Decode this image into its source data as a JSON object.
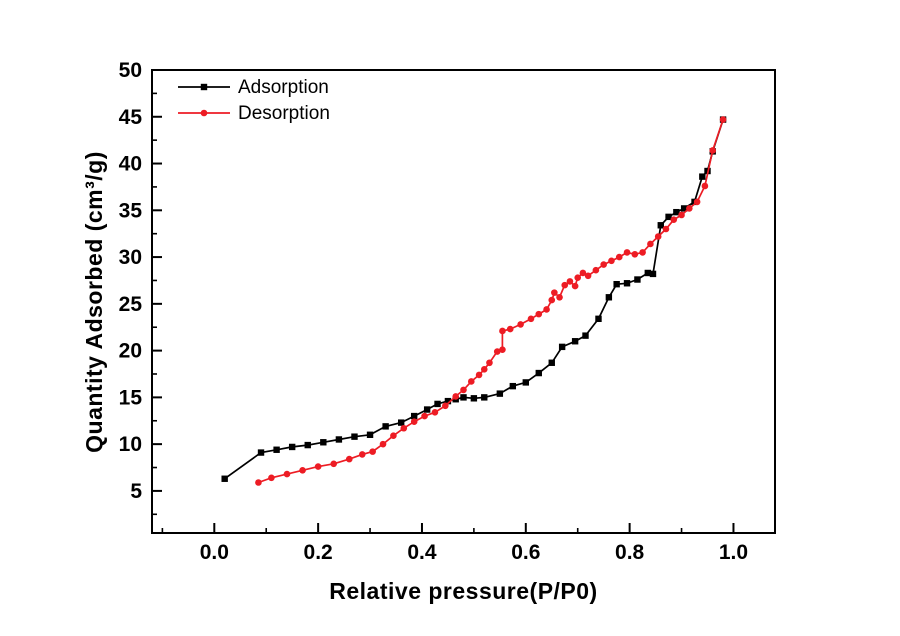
{
  "figure": {
    "background": "#ffffff",
    "frame_color": "#000000"
  },
  "chart_data": {
    "type": "line",
    "title": "",
    "xlabel": "Relative pressure(P/P0)",
    "ylabel": "Quantity Adsorbed (cm³/g)",
    "xlim": [
      -0.12,
      1.08
    ],
    "ylim": [
      0.5,
      50
    ],
    "xticks": [
      0.0,
      0.2,
      0.4,
      0.6,
      0.8,
      1.0
    ],
    "xtick_labels": [
      "0.0",
      "0.2",
      "0.4",
      "0.6",
      "0.8",
      "1.0"
    ],
    "yticks": [
      5,
      10,
      15,
      20,
      25,
      30,
      35,
      40,
      45,
      50
    ],
    "x_minor_step": 0.1,
    "y_minor_step": 2.5,
    "grid": false,
    "legend_position": "top-left",
    "legend": [
      "Adsorption",
      "Desorption"
    ],
    "series": [
      {
        "name": "Adsorption",
        "color": "#000000",
        "marker": "square",
        "points": [
          [
            0.02,
            6.3
          ],
          [
            0.09,
            9.1
          ],
          [
            0.12,
            9.4
          ],
          [
            0.15,
            9.7
          ],
          [
            0.18,
            9.9
          ],
          [
            0.21,
            10.2
          ],
          [
            0.24,
            10.5
          ],
          [
            0.27,
            10.8
          ],
          [
            0.3,
            11.0
          ],
          [
            0.33,
            11.9
          ],
          [
            0.36,
            12.3
          ],
          [
            0.385,
            13.0
          ],
          [
            0.41,
            13.7
          ],
          [
            0.43,
            14.3
          ],
          [
            0.45,
            14.6
          ],
          [
            0.465,
            14.8
          ],
          [
            0.48,
            15.0
          ],
          [
            0.5,
            14.9
          ],
          [
            0.52,
            15.0
          ],
          [
            0.55,
            15.4
          ],
          [
            0.575,
            16.2
          ],
          [
            0.6,
            16.6
          ],
          [
            0.625,
            17.6
          ],
          [
            0.65,
            18.7
          ],
          [
            0.67,
            20.4
          ],
          [
            0.695,
            21.0
          ],
          [
            0.715,
            21.6
          ],
          [
            0.74,
            23.4
          ],
          [
            0.76,
            25.7
          ],
          [
            0.775,
            27.1
          ],
          [
            0.795,
            27.2
          ],
          [
            0.815,
            27.6
          ],
          [
            0.835,
            28.3
          ],
          [
            0.845,
            28.2
          ],
          [
            0.86,
            33.4
          ],
          [
            0.875,
            34.3
          ],
          [
            0.89,
            34.8
          ],
          [
            0.905,
            35.2
          ],
          [
            0.925,
            35.9
          ],
          [
            0.94,
            38.6
          ],
          [
            0.95,
            39.2
          ],
          [
            0.96,
            41.3
          ],
          [
            0.98,
            44.7
          ]
        ]
      },
      {
        "name": "Desorption",
        "color": "#ed1c24",
        "marker": "circle",
        "points": [
          [
            0.085,
            5.9
          ],
          [
            0.11,
            6.4
          ],
          [
            0.14,
            6.8
          ],
          [
            0.17,
            7.2
          ],
          [
            0.2,
            7.6
          ],
          [
            0.23,
            7.9
          ],
          [
            0.26,
            8.4
          ],
          [
            0.285,
            8.9
          ],
          [
            0.305,
            9.2
          ],
          [
            0.325,
            10.0
          ],
          [
            0.345,
            10.9
          ],
          [
            0.365,
            11.7
          ],
          [
            0.385,
            12.4
          ],
          [
            0.405,
            13.0
          ],
          [
            0.425,
            13.4
          ],
          [
            0.445,
            14.1
          ],
          [
            0.465,
            15.1
          ],
          [
            0.48,
            15.8
          ],
          [
            0.495,
            16.7
          ],
          [
            0.51,
            17.4
          ],
          [
            0.52,
            18.0
          ],
          [
            0.53,
            18.7
          ],
          [
            0.545,
            19.9
          ],
          [
            0.555,
            20.1
          ],
          [
            0.555,
            22.1
          ],
          [
            0.57,
            22.3
          ],
          [
            0.59,
            22.8
          ],
          [
            0.61,
            23.4
          ],
          [
            0.625,
            23.9
          ],
          [
            0.64,
            24.4
          ],
          [
            0.65,
            25.4
          ],
          [
            0.655,
            26.2
          ],
          [
            0.665,
            25.7
          ],
          [
            0.675,
            27.0
          ],
          [
            0.685,
            27.4
          ],
          [
            0.695,
            26.9
          ],
          [
            0.7,
            27.8
          ],
          [
            0.71,
            28.3
          ],
          [
            0.72,
            28.0
          ],
          [
            0.735,
            28.6
          ],
          [
            0.75,
            29.2
          ],
          [
            0.765,
            29.6
          ],
          [
            0.78,
            30.0
          ],
          [
            0.795,
            30.5
          ],
          [
            0.81,
            30.3
          ],
          [
            0.825,
            30.5
          ],
          [
            0.84,
            31.4
          ],
          [
            0.855,
            32.2
          ],
          [
            0.87,
            33.0
          ],
          [
            0.885,
            34.0
          ],
          [
            0.9,
            34.5
          ],
          [
            0.915,
            35.2
          ],
          [
            0.93,
            35.9
          ],
          [
            0.945,
            37.6
          ],
          [
            0.96,
            41.4
          ],
          [
            0.98,
            44.7
          ]
        ]
      }
    ]
  }
}
